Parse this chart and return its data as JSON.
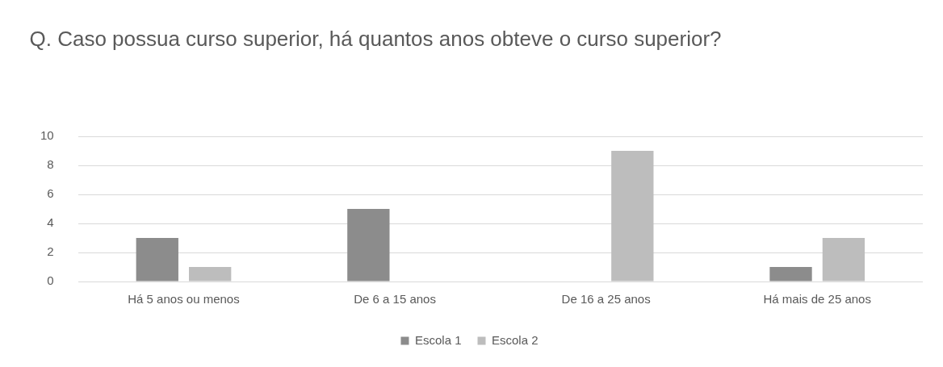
{
  "chart_data": {
    "type": "bar",
    "title": "Q. Caso possua curso superior, há quantos anos obteve o curso superior?",
    "categories": [
      "Há 5 anos ou menos",
      "De 6 a 15 anos",
      "De 16 a 25 anos",
      "Há mais de 25 anos"
    ],
    "series": [
      {
        "name": "Escola 1",
        "color": "#8c8c8c",
        "values": [
          3,
          5,
          0,
          1
        ]
      },
      {
        "name": "Escola 2",
        "color": "#bdbdbd",
        "values": [
          1,
          0,
          9,
          3
        ]
      }
    ],
    "ylim": [
      0,
      10
    ],
    "yticks": [
      0,
      2,
      4,
      6,
      8,
      10
    ],
    "grid": "y",
    "legend": "bottom"
  }
}
